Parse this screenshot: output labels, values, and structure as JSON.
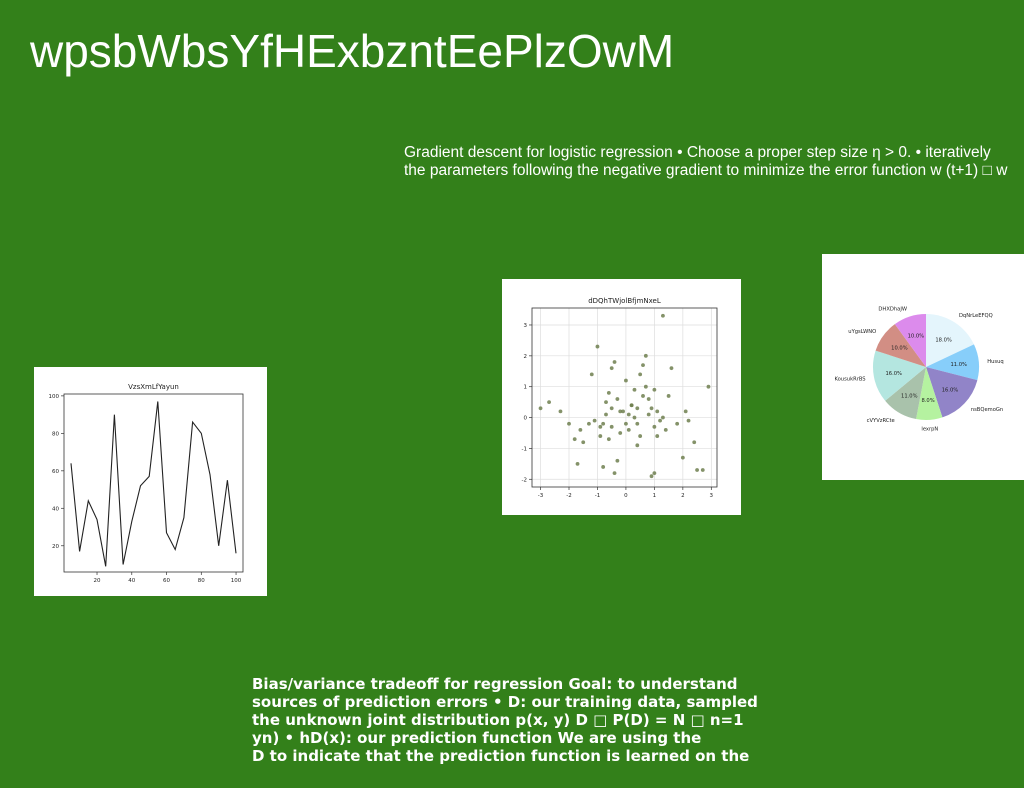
{
  "title": "wpsbWbsYfHExbzntEePlzOwM",
  "text_top": [
    "Gradient descent for logistic regression • Choose a proper step size η > 0. • iteratively",
    "the parameters following the negative gradient to minimize the error function w (t+1) □ w"
  ],
  "text_bottom": [
    "Bias/variance tradeoff for regression Goal: to understand",
    "sources of prediction errors • D: our training data, sampled",
    "the unknown joint distribution p(x, y) D □ P(D) = N □ n=1",
    "yn) • hD(x): our prediction function We are using the",
    "D to indicate that the prediction function is learned on the"
  ],
  "chart_data": [
    {
      "type": "line",
      "title": "VzsXmLfYayun",
      "x": [
        5,
        10,
        15,
        20,
        25,
        30,
        35,
        40,
        45,
        50,
        55,
        60,
        65,
        70,
        75,
        80,
        85,
        90,
        95,
        100
      ],
      "y": [
        64,
        17,
        44,
        34,
        9,
        90,
        10,
        33,
        52,
        57,
        97,
        27,
        18,
        35,
        86,
        80,
        58,
        20,
        55,
        16
      ],
      "xticks": [
        20,
        40,
        60,
        80,
        100
      ],
      "yticks": [
        20,
        40,
        60,
        80,
        100
      ],
      "xlim": [
        1,
        104
      ],
      "ylim": [
        6,
        101
      ],
      "grid": false,
      "color": "#222222"
    },
    {
      "type": "scatter",
      "title": "dDQhTWjolBfjmNxeL",
      "x": [
        -3.0,
        -2.7,
        -2.3,
        -2.0,
        -1.7,
        -1.6,
        -1.5,
        -1.3,
        -1.1,
        -1.0,
        -0.9,
        -0.8,
        -0.7,
        -0.6,
        -0.5,
        -0.4,
        -0.3,
        -0.2,
        0.0,
        0.1,
        0.2,
        0.3,
        0.4,
        0.5,
        0.6,
        0.7,
        0.8,
        0.9,
        1.0,
        1.1,
        1.2,
        1.3,
        1.4,
        1.5,
        1.6,
        1.8,
        2.0,
        2.1,
        2.2,
        2.4,
        2.5,
        2.7,
        2.9,
        -0.9,
        -0.5,
        -0.3,
        0.1,
        0.4,
        0.8,
        1.0,
        -1.2,
        -0.6,
        0.0,
        0.5,
        -0.2,
        0.3,
        0.9,
        -0.7,
        -0.4,
        0.2,
        0.6,
        1.0,
        -1.8,
        -0.1,
        0.7,
        1.3,
        -0.8,
        0.4,
        -0.5,
        1.1
      ],
      "y": [
        0.3,
        0.5,
        0.2,
        -0.2,
        -1.5,
        -0.4,
        -0.8,
        -0.2,
        -0.1,
        2.3,
        -0.6,
        -0.2,
        0.1,
        0.8,
        1.6,
        1.8,
        0.6,
        0.2,
        -0.2,
        0.1,
        0.4,
        0.9,
        -0.2,
        1.4,
        1.7,
        2.0,
        0.6,
        0.3,
        -1.8,
        0.2,
        -0.1,
        3.3,
        -0.4,
        0.7,
        1.6,
        -0.2,
        -1.3,
        0.2,
        -0.1,
        -0.8,
        -1.7,
        -1.7,
        1.0,
        -0.3,
        0.3,
        -1.4,
        -0.4,
        -0.9,
        0.1,
        0.9,
        1.4,
        -0.7,
        1.2,
        -0.6,
        -0.5,
        0.0,
        -1.9,
        0.5,
        -1.8,
        0.4,
        0.7,
        -0.3,
        -0.7,
        0.2,
        1.0,
        0.0,
        -1.6,
        0.3,
        -0.3,
        -0.6
      ],
      "xticks": [
        -3,
        -2,
        -1,
        0,
        1,
        2,
        3
      ],
      "yticks": [
        -2,
        -1,
        0,
        1,
        2,
        3
      ],
      "xlim": [
        -3.3,
        3.2
      ],
      "ylim": [
        -2.25,
        3.55
      ],
      "grid": true,
      "color": "#6f7f4f"
    },
    {
      "type": "pie",
      "labels": [
        "DqNrLeEFQQ",
        "Husuq",
        "nsBQemoGn",
        "lexrpN",
        "cVYVzRCte",
        "KousukRrBS",
        "uYgsLWNO",
        "DHXDhaJW"
      ],
      "values": [
        18.0,
        11.0,
        16.0,
        8.0,
        11.0,
        16.0,
        10.0,
        10.0
      ],
      "autopct": [
        "18.0%",
        "11.0%",
        "16.0%",
        "8.0%",
        "11.0%",
        "16.0%",
        "10.0%",
        "10.0%"
      ],
      "colors": [
        "#e4f5fc",
        "#87cefa",
        "#9184c8",
        "#b5f2a0",
        "#a9c2ab",
        "#b4e6e0",
        "#d28e84",
        "#dc8bec"
      ]
    }
  ]
}
